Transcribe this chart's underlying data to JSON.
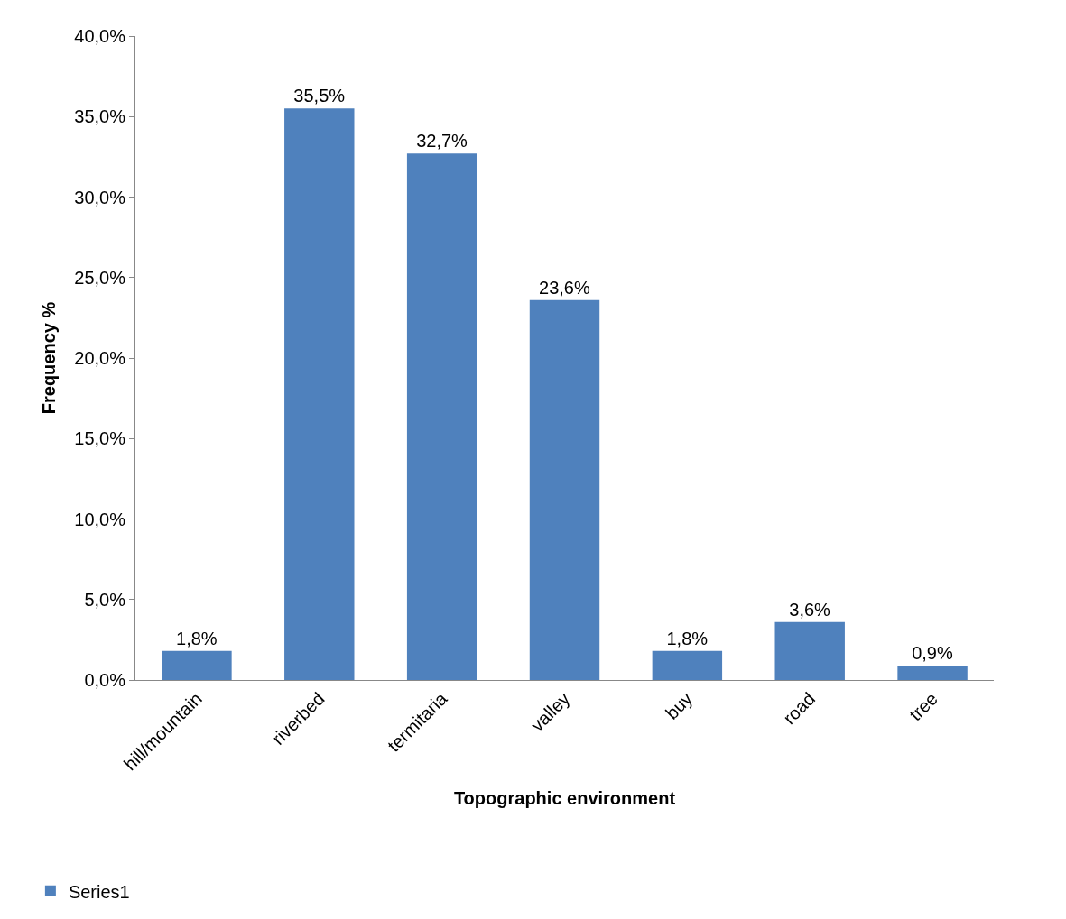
{
  "chart_data": {
    "type": "bar",
    "xlabel": "Topographic environment",
    "ylabel": "Frequency %",
    "categories": [
      "hill/mountain",
      "riverbed",
      "termitaria",
      "valley",
      "buy",
      "road",
      "tree"
    ],
    "series": [
      {
        "name": "Series1",
        "color": "#4f81bd",
        "values": [
          1.8,
          35.5,
          32.7,
          23.6,
          1.8,
          3.6,
          0.9
        ],
        "value_labels": [
          "1,8%",
          "35,5%",
          "32,7%",
          "23,6%",
          "1,8%",
          "3,6%",
          "0,9%"
        ]
      }
    ],
    "ylim": [
      0,
      40
    ],
    "yticks": [
      {
        "value": 0,
        "label": "0,0%"
      },
      {
        "value": 5,
        "label": "5,0%"
      },
      {
        "value": 10,
        "label": "10,0%"
      },
      {
        "value": 15,
        "label": "15,0%"
      },
      {
        "value": 20,
        "label": "20,0%"
      },
      {
        "value": 25,
        "label": "25,0%"
      },
      {
        "value": 30,
        "label": "30,0%"
      },
      {
        "value": 35,
        "label": "35,0%"
      },
      {
        "value": 40,
        "label": "40,0%"
      }
    ],
    "grid": false,
    "legend": "bottom left"
  }
}
